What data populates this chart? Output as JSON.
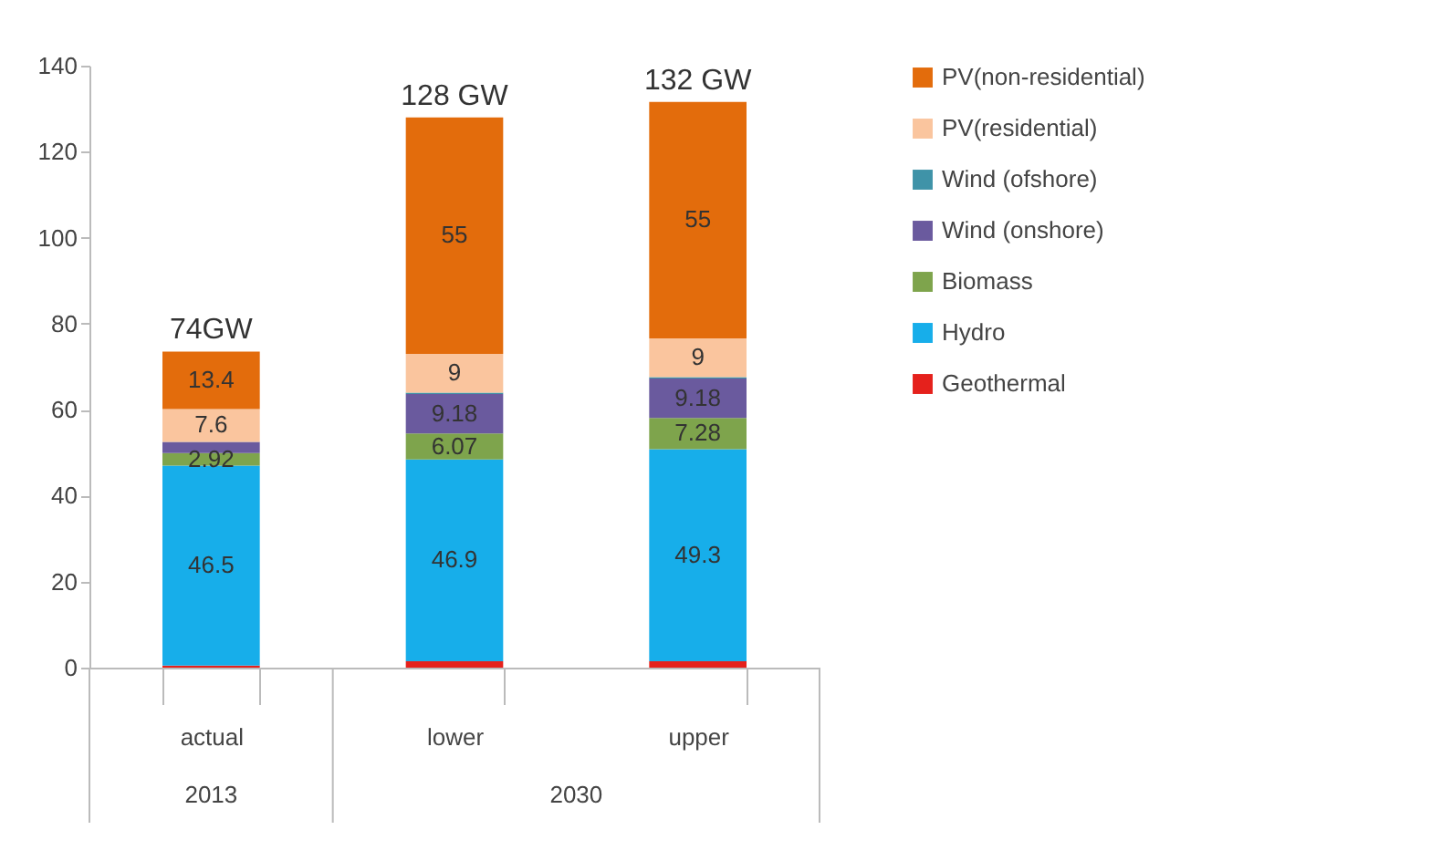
{
  "chart_data": {
    "type": "bar",
    "stacked": true,
    "categories": [
      "actual",
      "lower",
      "upper"
    ],
    "series": [
      {
        "name": "Geothermal",
        "color": "#e5211c",
        "values": [
          0.5,
          1.5,
          1.5
        ],
        "value_labels": [
          null,
          null,
          null
        ]
      },
      {
        "name": "Hydro",
        "color": "#17aeea",
        "values": [
          46.5,
          46.9,
          49.3
        ],
        "value_labels": [
          "46.5",
          "46.9",
          "49.3"
        ]
      },
      {
        "name": "Biomass",
        "color": "#7ea44c",
        "values": [
          2.92,
          6.07,
          7.28
        ],
        "value_labels": [
          "2.92",
          "6.07",
          "7.28"
        ]
      },
      {
        "name": "Wind (onshore)",
        "color": "#6a5a9e",
        "values": [
          2.6,
          9.18,
          9.18
        ],
        "value_labels": [
          null,
          "9.18",
          "9.18"
        ]
      },
      {
        "name": "Wind (ofshore)",
        "color": "#3f93a8",
        "values": [
          null,
          0.3,
          0.3
        ],
        "value_labels": [
          null,
          null,
          null
        ]
      },
      {
        "name": "PV(residential)",
        "color": "#fac59e",
        "values": [
          7.6,
          9,
          9
        ],
        "value_labels": [
          "7.6",
          "9",
          "9"
        ]
      },
      {
        "name": "PV(non-residential)",
        "color": "#e36c0c",
        "values": [
          13.4,
          55,
          55
        ],
        "value_labels": [
          "13.4",
          "55",
          "55"
        ]
      }
    ],
    "totals": [
      "74GW",
      "128 GW",
      "132 GW"
    ],
    "annotations": [
      "2013",
      "2030"
    ],
    "ylim": [
      0,
      140
    ],
    "yticks": [
      0,
      20,
      40,
      60,
      80,
      100,
      120,
      140
    ],
    "legend": "right"
  }
}
